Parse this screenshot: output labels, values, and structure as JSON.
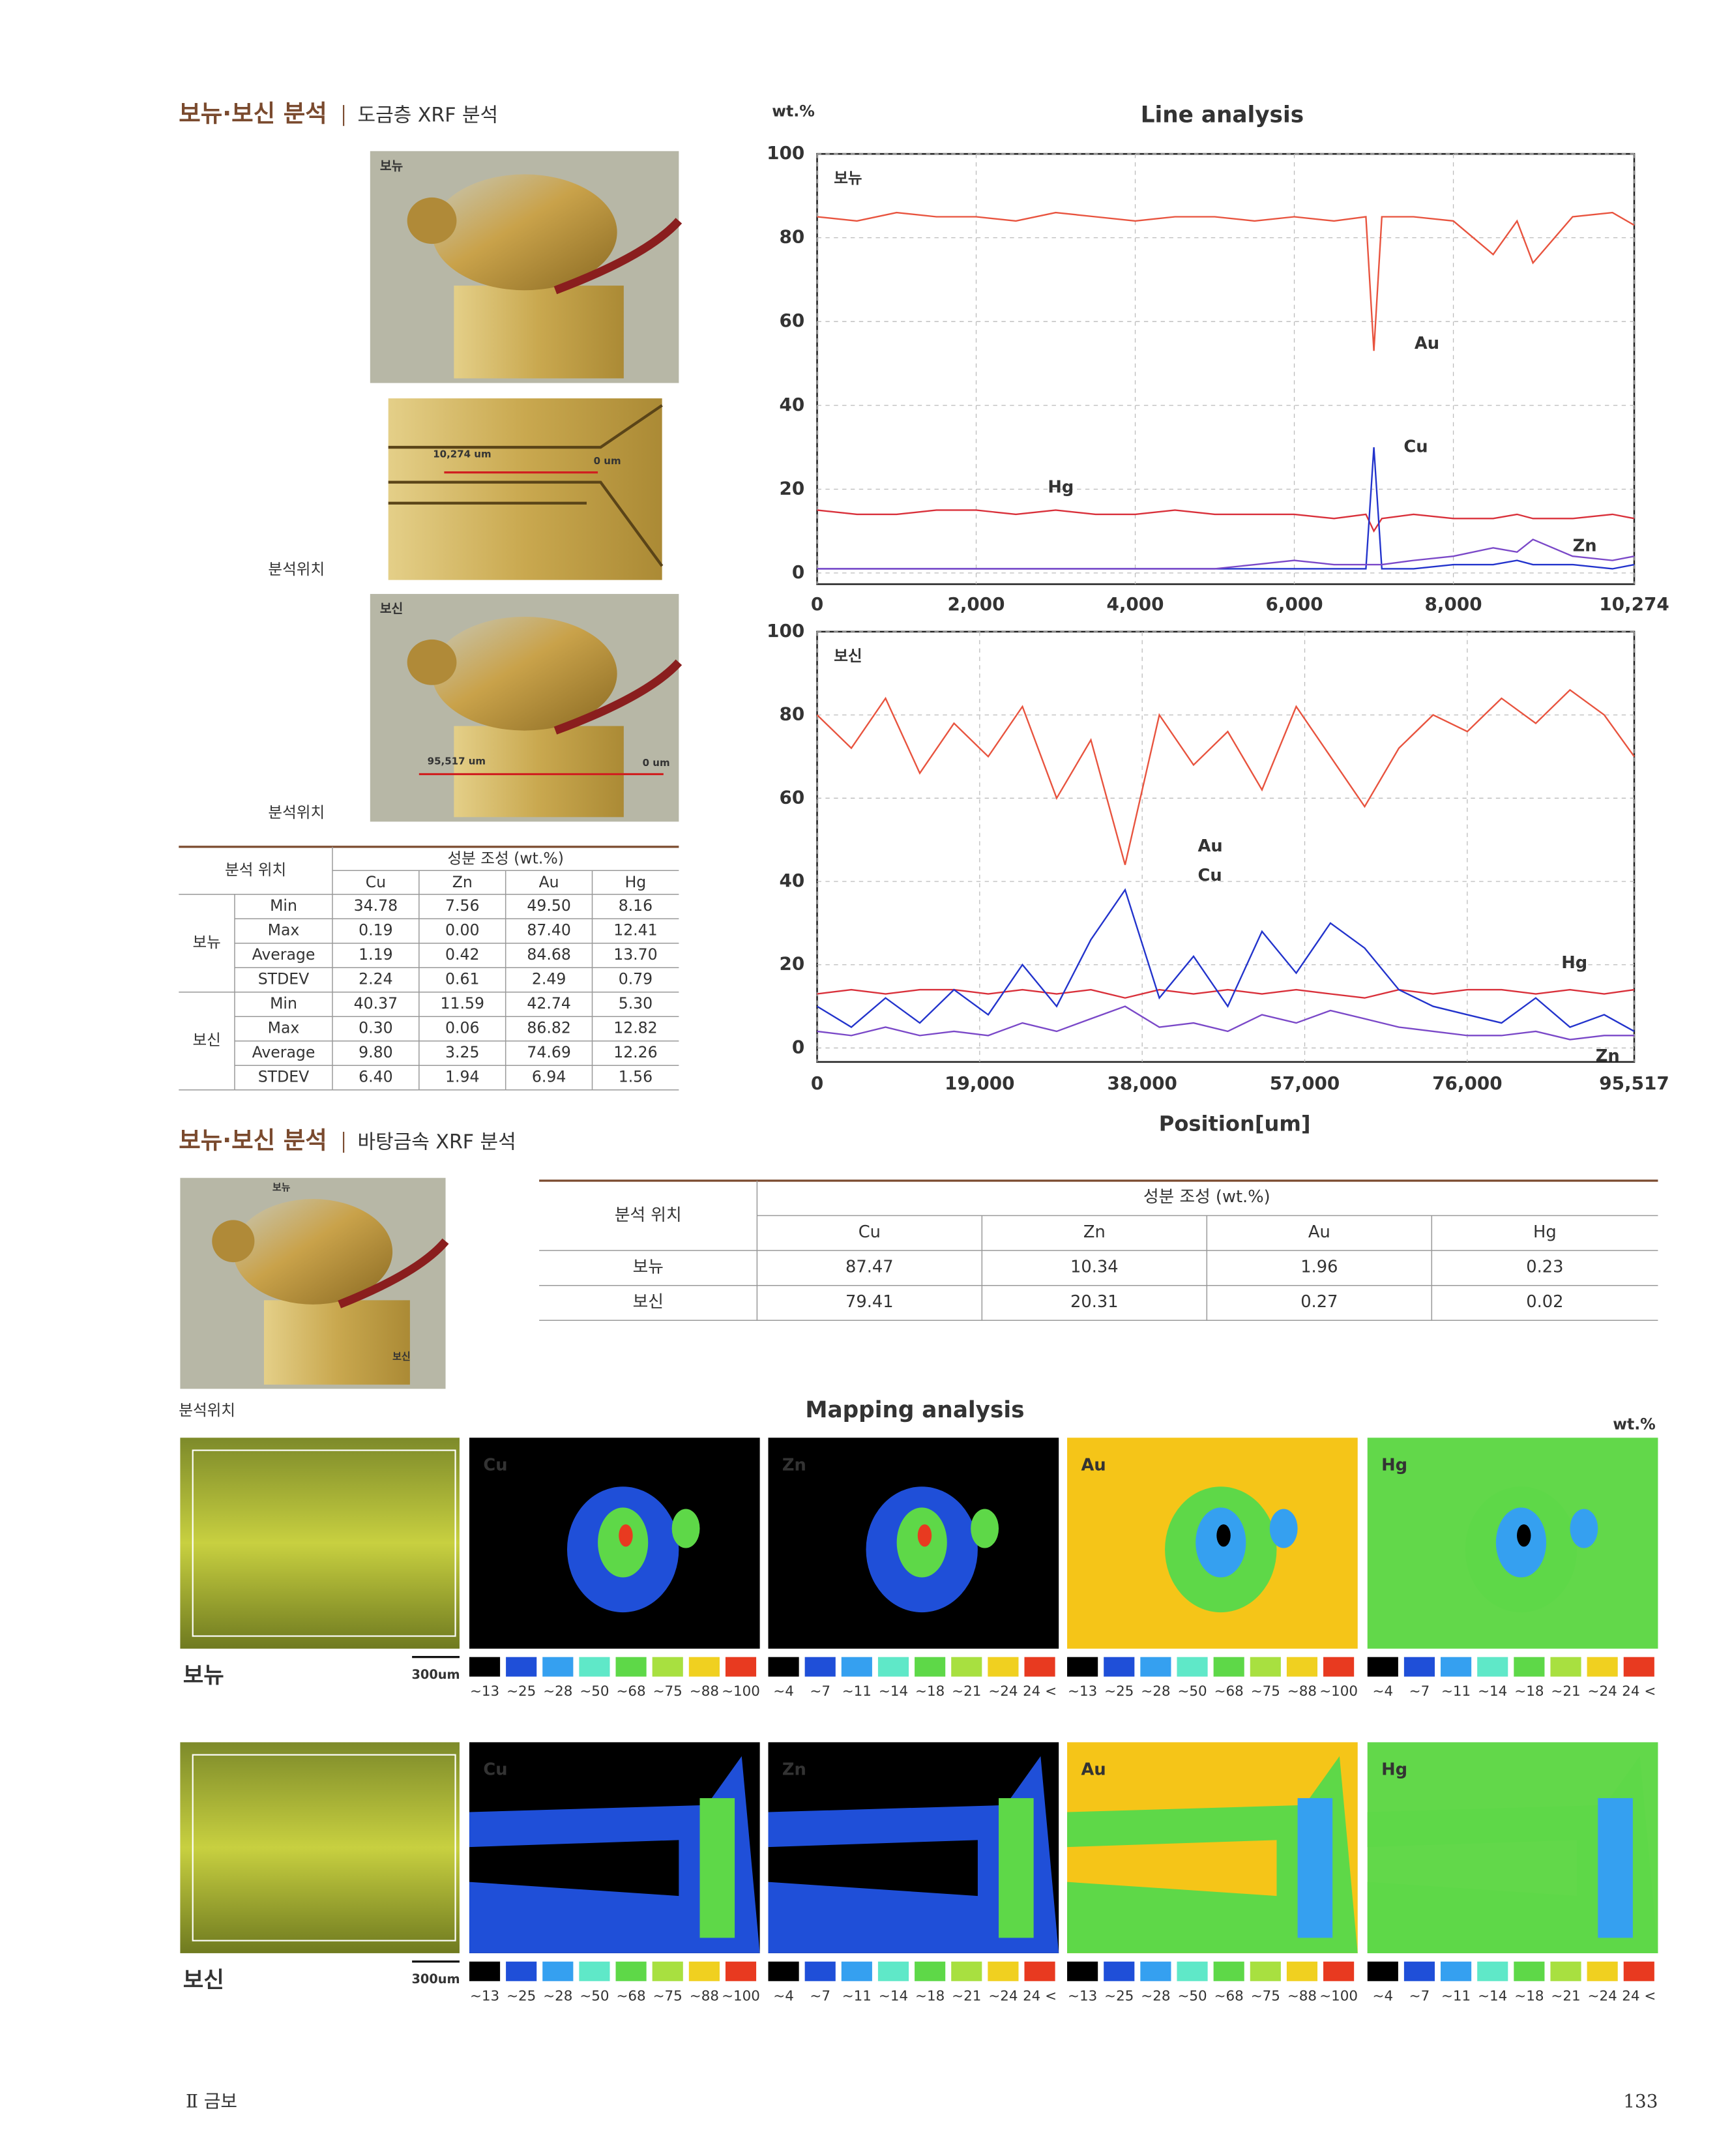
{
  "section1": {
    "title": "보뉴·보신 분석",
    "subtitle": "도금층 XRF 분석"
  },
  "photos": {
    "bonyu_label": "보뉴",
    "bosin_label": "보신",
    "position_label_1": "분석위치",
    "position_label_2": "분석위치",
    "scale_bonyu_start": "10,274 um",
    "scale_bonyu_end": "0 um",
    "scale_bosin_start": "95,517 um",
    "scale_bosin_end": "0 um"
  },
  "table1": {
    "header_position": "분석 위치",
    "header_composition": "성분 조성 (wt.%)",
    "columns": [
      "Cu",
      "Zn",
      "Au",
      "Hg"
    ],
    "groups": [
      {
        "name": "보뉴",
        "rows": [
          {
            "stat": "Min",
            "values": [
              "34.78",
              "7.56",
              "49.50",
              "8.16"
            ]
          },
          {
            "stat": "Max",
            "values": [
              "0.19",
              "0.00",
              "87.40",
              "12.41"
            ]
          },
          {
            "stat": "Average",
            "values": [
              "1.19",
              "0.42",
              "84.68",
              "13.70"
            ]
          },
          {
            "stat": "STDEV",
            "values": [
              "2.24",
              "0.61",
              "2.49",
              "0.79"
            ]
          }
        ]
      },
      {
        "name": "보신",
        "rows": [
          {
            "stat": "Min",
            "values": [
              "40.37",
              "11.59",
              "42.74",
              "5.30"
            ]
          },
          {
            "stat": "Max",
            "values": [
              "0.30",
              "0.06",
              "86.82",
              "12.82"
            ]
          },
          {
            "stat": "Average",
            "values": [
              "9.80",
              "3.25",
              "74.69",
              "12.26"
            ]
          },
          {
            "stat": "STDEV",
            "values": [
              "6.40",
              "1.94",
              "6.94",
              "1.56"
            ]
          }
        ]
      }
    ]
  },
  "chart_data": [
    {
      "type": "line",
      "title": "Line analysis",
      "y_label": "wt.%",
      "panel_label": "보뉴",
      "grid": true,
      "x": [
        0,
        500,
        1000,
        1500,
        2000,
        2500,
        3000,
        3500,
        4000,
        4500,
        5000,
        5500,
        6000,
        6500,
        6900,
        7000,
        7100,
        7500,
        8000,
        8500,
        8800,
        9000,
        9500,
        10000,
        10274
      ],
      "xlim": [
        0,
        10274
      ],
      "xticks": [
        0,
        {
          "value": 2000,
          "label": "2,000"
        },
        {
          "value": 4000,
          "label": "4,000"
        },
        {
          "value": 6000,
          "label": "6,000"
        },
        {
          "value": 8000,
          "label": "8,000"
        },
        {
          "value": 10274,
          "label": "10,274"
        }
      ],
      "ylim": [
        0,
        100
      ],
      "yticks": [
        0,
        20,
        40,
        60,
        80,
        100
      ],
      "series": [
        {
          "name": "Au",
          "color": "#e8533e",
          "values": [
            85,
            84,
            86,
            85,
            85,
            84,
            86,
            85,
            84,
            85,
            85,
            84,
            85,
            84,
            85,
            53,
            85,
            85,
            84,
            76,
            84,
            74,
            85,
            86,
            83
          ]
        },
        {
          "name": "Hg",
          "color": "#d9303a",
          "values": [
            15,
            14,
            14,
            15,
            15,
            14,
            15,
            14,
            14,
            15,
            14,
            14,
            14,
            13,
            14,
            10,
            13,
            14,
            13,
            13,
            14,
            13,
            13,
            14,
            13
          ]
        },
        {
          "name": "Cu",
          "color": "#2233cc",
          "values": [
            1,
            1,
            1,
            1,
            1,
            1,
            1,
            1,
            1,
            1,
            1,
            1,
            1,
            1,
            1,
            30,
            1,
            1,
            2,
            2,
            3,
            2,
            2,
            1,
            2
          ]
        },
        {
          "name": "Zn",
          "color": "#7a48c8",
          "values": [
            1,
            1,
            1,
            1,
            1,
            1,
            1,
            1,
            1,
            1,
            1,
            2,
            3,
            2,
            2,
            2,
            2,
            3,
            4,
            6,
            5,
            8,
            4,
            3,
            4
          ]
        }
      ]
    },
    {
      "type": "line",
      "panel_label": "보신",
      "x_label": "Position[um]",
      "grid": true,
      "x": [
        0,
        4000,
        8000,
        12000,
        16000,
        20000,
        24000,
        28000,
        32000,
        36000,
        40000,
        44000,
        48000,
        52000,
        56000,
        60000,
        64000,
        68000,
        72000,
        76000,
        80000,
        84000,
        88000,
        92000,
        95517
      ],
      "xlim": [
        0,
        95517
      ],
      "xticks": [
        0,
        {
          "value": 19000,
          "label": "19,000"
        },
        {
          "value": 38000,
          "label": "38,000"
        },
        {
          "value": 57000,
          "label": "57,000"
        },
        {
          "value": 76000,
          "label": "76,000"
        },
        {
          "value": 95517,
          "label": "95,517"
        }
      ],
      "ylim": [
        0,
        100
      ],
      "yticks": [
        0,
        20,
        40,
        60,
        80,
        100
      ],
      "series": [
        {
          "name": "Au",
          "color": "#e8533e",
          "values": [
            80,
            72,
            84,
            66,
            78,
            70,
            82,
            60,
            74,
            44,
            80,
            68,
            76,
            62,
            82,
            70,
            58,
            72,
            80,
            76,
            84,
            78,
            86,
            80,
            70
          ]
        },
        {
          "name": "Hg",
          "color": "#d9303a",
          "values": [
            13,
            14,
            13,
            14,
            14,
            13,
            14,
            13,
            14,
            12,
            14,
            13,
            14,
            13,
            14,
            13,
            12,
            14,
            13,
            14,
            14,
            13,
            14,
            13,
            14
          ]
        },
        {
          "name": "Cu",
          "color": "#2233cc",
          "values": [
            10,
            5,
            12,
            6,
            14,
            8,
            20,
            10,
            26,
            38,
            12,
            22,
            10,
            28,
            18,
            30,
            24,
            14,
            10,
            8,
            6,
            12,
            5,
            8,
            4
          ]
        },
        {
          "name": "Zn",
          "color": "#7a48c8",
          "values": [
            4,
            3,
            5,
            3,
            4,
            3,
            6,
            4,
            7,
            10,
            5,
            6,
            4,
            8,
            6,
            9,
            7,
            5,
            4,
            3,
            3,
            4,
            2,
            3,
            3
          ]
        }
      ]
    }
  ],
  "section2": {
    "title": "보뉴·보신 분석",
    "subtitle": "바탕금속 XRF 분석",
    "photo_bonyu_label": "보뉴",
    "photo_bosin_label": "보신",
    "position_label": "분석위치"
  },
  "table2": {
    "header_position": "분석 위치",
    "header_composition": "성분 조성 (wt.%)",
    "columns": [
      "Cu",
      "Zn",
      "Au",
      "Hg"
    ],
    "rows": [
      {
        "name": "보뉴",
        "values": [
          "87.47",
          "10.34",
          "1.96",
          "0.23"
        ]
      },
      {
        "name": "보신",
        "values": [
          "79.41",
          "20.31",
          "0.27",
          "0.02"
        ]
      }
    ]
  },
  "mapping": {
    "title": "Mapping analysis",
    "unit": "wt.%",
    "legend_major": [
      "~13",
      "~25",
      "~28",
      "~50",
      "~68",
      "~75",
      "~88",
      "~100"
    ],
    "legend_minor": [
      "~4",
      "~7",
      "~11",
      "~14",
      "~18",
      "~21",
      "~24",
      "24 <"
    ],
    "rows": [
      {
        "name": "보뉴",
        "scale": "300um",
        "maps": [
          "Cu",
          "Zn",
          "Au",
          "Hg"
        ]
      },
      {
        "name": "보신",
        "scale": "300um",
        "maps": [
          "Cu",
          "Zn",
          "Au",
          "Hg"
        ]
      }
    ]
  },
  "footer": {
    "chapter": "Ⅱ 금보",
    "page": "133"
  }
}
